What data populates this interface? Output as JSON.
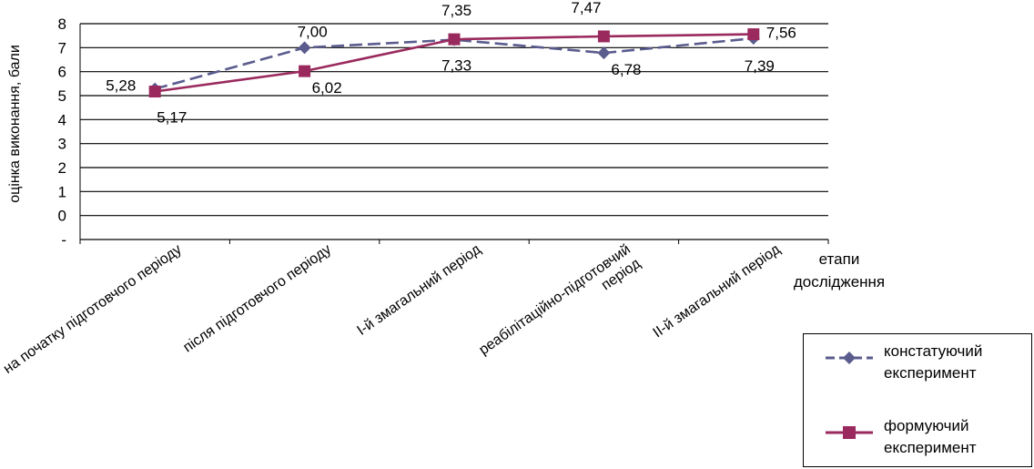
{
  "chart_data": {
    "type": "line",
    "ylabel": "оцінка виконання, бали",
    "xlabel": [
      "етапи",
      "дослідження"
    ],
    "categories": [
      "на початку підготовчого періоду",
      "після підготовчого періоду",
      "І-й змагальний період",
      [
        "реабілітаційно-підготовчий",
        "період"
      ],
      "ІІ-й змагальний період"
    ],
    "yticks": [
      "8",
      "7",
      "6",
      "5",
      "4",
      "3",
      "2",
      "1",
      "0",
      "-"
    ],
    "ylim": [
      -1,
      8
    ],
    "grid": true,
    "legend_position": "bottom-right",
    "series": [
      {
        "name": [
          "констатуючий",
          "експеримент"
        ],
        "values": [
          5.28,
          7.0,
          7.33,
          6.78,
          7.39
        ],
        "labels": [
          "5,28",
          "7,00",
          "7,33",
          "6,78",
          "7,39"
        ],
        "color": "#5a5c8e",
        "marker": "diamond",
        "line_style": "dashed"
      },
      {
        "name": [
          "формуючий",
          "експеримент"
        ],
        "values": [
          5.17,
          6.02,
          7.35,
          7.47,
          7.56
        ],
        "labels": [
          "5,17",
          "6,02",
          "7,35",
          "7,47",
          "7,56"
        ],
        "color": "#9a2a5e",
        "marker": "square",
        "line_style": "solid"
      }
    ]
  }
}
